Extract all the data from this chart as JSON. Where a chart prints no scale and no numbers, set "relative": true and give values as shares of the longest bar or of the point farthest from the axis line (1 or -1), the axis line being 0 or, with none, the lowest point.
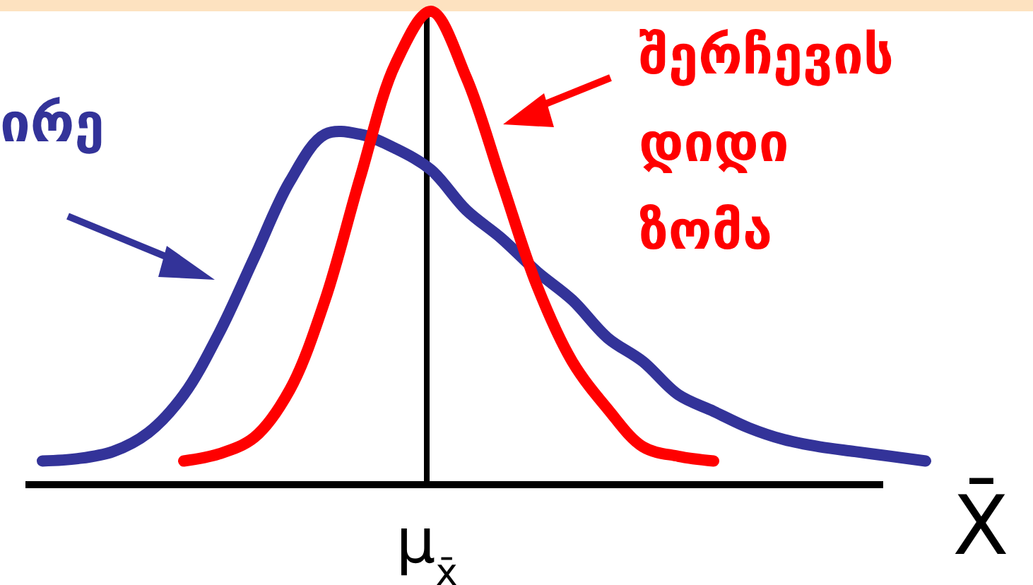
{
  "chart_data": {
    "type": "line",
    "relative": true,
    "xlabel": "X̄",
    "line_style": "solid",
    "categories": [
      null,
      null,
      null,
      null,
      null,
      null,
      null,
      null,
      null,
      null,
      null,
      null,
      null,
      null,
      null,
      null,
      null,
      null,
      null,
      null,
      null,
      null,
      null,
      null,
      null,
      null
    ],
    "annotations": [
      "ირე",
      "შერჩევის\nდიდი\nზომა"
    ],
    "ref_lines": [
      {
        "axis": "x",
        "label": "μ$_{x̄}$",
        "color": "#000000"
      }
    ],
    "series": [
      {
        "color": "#333399",
        "values": [
          0.05,
          0.055,
          0.07,
          0.11,
          0.19,
          0.32,
          0.48,
          0.64,
          0.74,
          0.74,
          0.71,
          0.665,
          0.58,
          0.52,
          0.45,
          0.39,
          0.31,
          0.26,
          0.19,
          0.155,
          0.12,
          0.095,
          0.08,
          0.07,
          0.06,
          0.05
        ]
      },
      {
        "color": "#ff0000",
        "values": [
          null,
          null,
          null,
          null,
          0.05,
          0.065,
          0.1,
          0.2,
          0.39,
          0.65,
          0.89,
          1,
          0.86,
          0.64,
          0.42,
          0.26,
          0.16,
          0.08,
          0.06,
          0.05,
          null,
          null,
          null,
          null,
          null,
          null
        ]
      }
    ]
  }
}
